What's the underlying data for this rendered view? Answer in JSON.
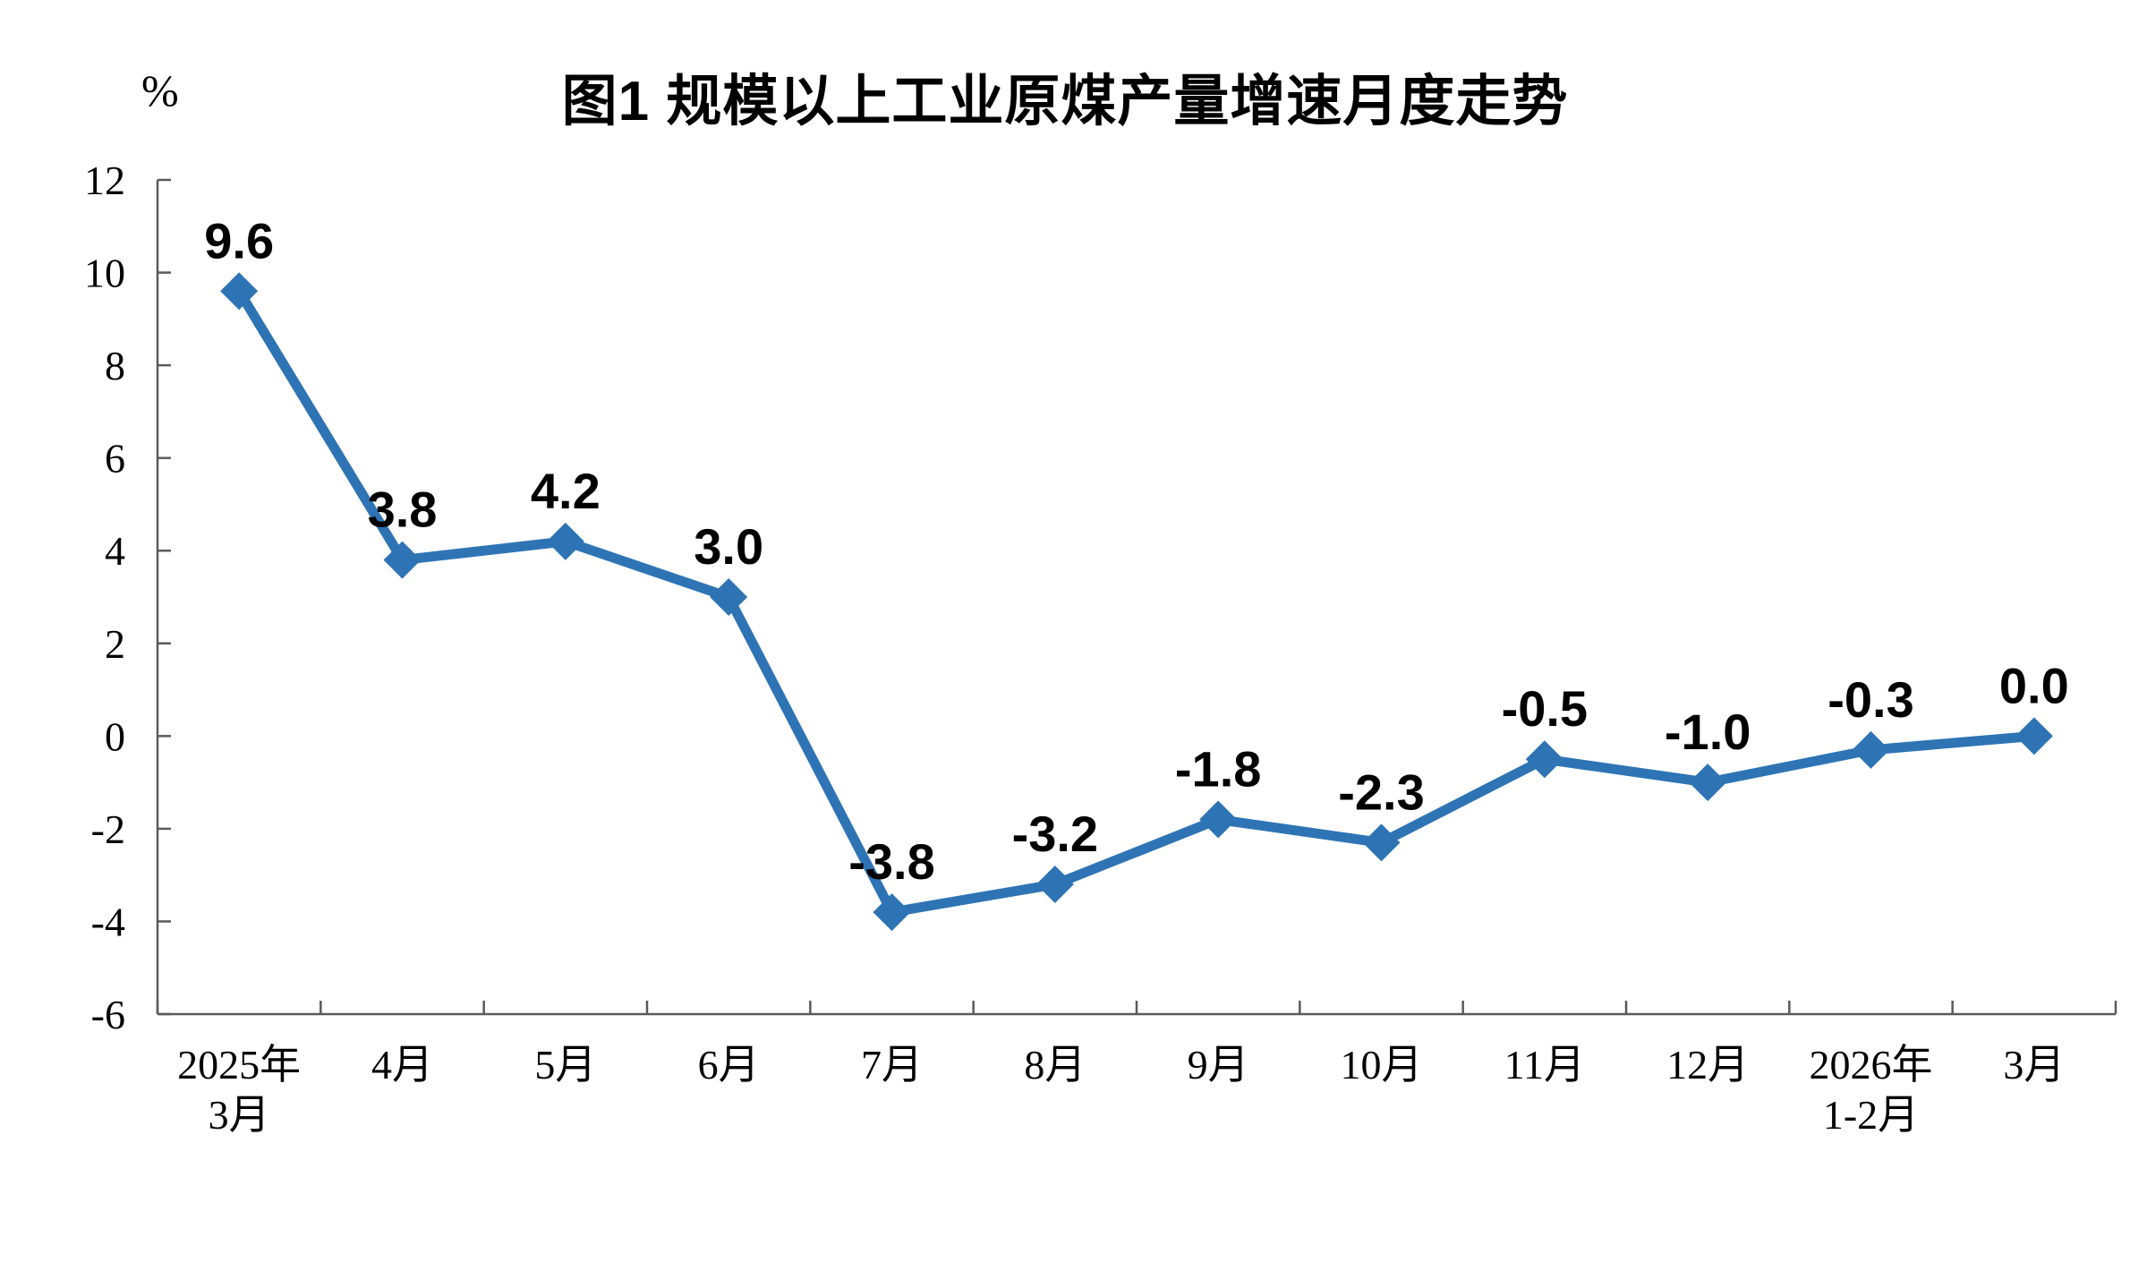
{
  "chart_data": {
    "type": "line",
    "title": "图1 规模以上工业原煤产量增速月度走势",
    "unit_label": "%",
    "categories": [
      "2025年\n3月",
      "4月",
      "5月",
      "6月",
      "7月",
      "8月",
      "9月",
      "10月",
      "11月",
      "12月",
      "2026年\n1-2月",
      "3月"
    ],
    "series": [
      {
        "name": "规模以上工业原煤产量增速",
        "values": [
          9.6,
          3.8,
          4.2,
          3.0,
          -3.8,
          -3.2,
          -1.8,
          -2.3,
          -0.5,
          -1.0,
          -0.3,
          0.0
        ],
        "labels": [
          "9.6",
          "3.8",
          "4.2",
          "3.0",
          "-3.8",
          "-3.2",
          "-1.8",
          "-2.3",
          "-0.5",
          "-1.0",
          "-0.3",
          "0.0"
        ],
        "color": "#2E74B5",
        "marker": "diamond"
      }
    ],
    "xlabel": "",
    "ylabel": "%",
    "ylim": [
      -6,
      12
    ],
    "yticks": [
      12,
      10,
      8,
      6,
      4,
      2,
      0,
      -2,
      -4,
      -6
    ],
    "grid": false,
    "legend_position": "none",
    "tick_style": "inside",
    "axis_color": "#5a5a5a",
    "text_color": "#000000",
    "background_color": "#ffffff"
  }
}
